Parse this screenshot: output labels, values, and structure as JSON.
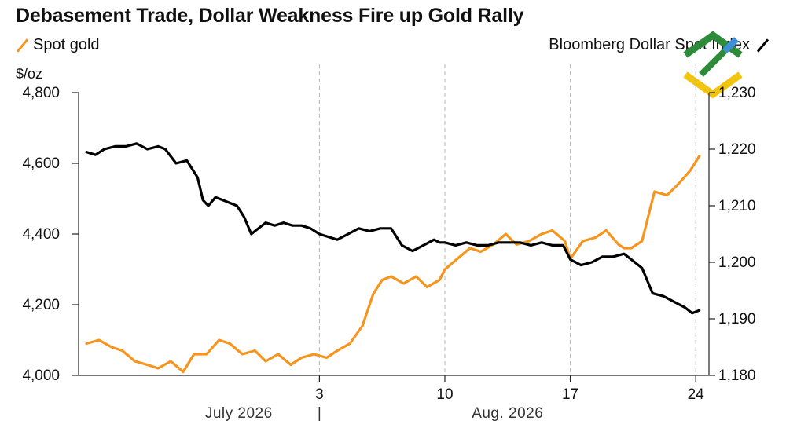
{
  "title": "Debasement Trade, Dollar Weakness Fire up Gold Rally",
  "legend": {
    "left": {
      "label": "Spot gold",
      "color": "#f7941d"
    },
    "right": {
      "label": "Bloomberg Dollar Spot Index",
      "color": "#000000"
    }
  },
  "units": {
    "left": "$/oz"
  },
  "logo": {
    "name": "brand-logo-icon",
    "colors": [
      "#2e8b3a",
      "#3d8fd9",
      "#f1c40f"
    ]
  },
  "chart_data": {
    "type": "line",
    "title": "Debasement Trade, Dollar Weakness Fire up Gold Rally",
    "x_ticks": [
      "3",
      "10",
      "17",
      "24"
    ],
    "x_tick_days": [
      13,
      20,
      27,
      34
    ],
    "x_month_labels": [
      {
        "label": "July 2026",
        "day": 8.5
      },
      {
        "label": "Aug. 2026",
        "day": 23.5
      }
    ],
    "month_separator_day": 13,
    "x_range_days": [
      0,
      34.3
    ],
    "left_axis": {
      "label": "$/oz",
      "range": [
        4000,
        4800
      ],
      "ticks": [
        "4,000",
        "4,200",
        "4,400",
        "4,600",
        "4,800"
      ],
      "tick_values": [
        4000,
        4200,
        4400,
        4600,
        4800
      ]
    },
    "right_axis": {
      "range": [
        1180,
        1230
      ],
      "ticks": [
        "1,180",
        "1,190",
        "1,200",
        "1,210",
        "1,220",
        "1,230"
      ],
      "tick_values": [
        1180,
        1190,
        1200,
        1210,
        1220,
        1230
      ]
    },
    "vertical_grid_days": [
      13,
      20,
      27,
      34
    ],
    "series": [
      {
        "name": "Spot gold",
        "axis": "left",
        "color": "#f7941d",
        "x_days": [
          0,
          0.7,
          1.4,
          2,
          2.7,
          3.4,
          4,
          4.7,
          5.4,
          6,
          6.7,
          7.4,
          8,
          8.7,
          9.4,
          10,
          10.7,
          11.4,
          12,
          12.7,
          13.4,
          14,
          14.7,
          15.4,
          16,
          16.5,
          17,
          17.7,
          18.4,
          19,
          19.7,
          20,
          20.7,
          21.4,
          22,
          22.7,
          23.4,
          24,
          24.7,
          25.4,
          26,
          26.7,
          27,
          27.7,
          28.4,
          29,
          29.7,
          30,
          30.4,
          31,
          31.7,
          32.4,
          33,
          33.7,
          34.2
        ],
        "values": [
          4090,
          4100,
          4080,
          4070,
          4040,
          4030,
          4020,
          4040,
          4010,
          4060,
          4060,
          4100,
          4090,
          4060,
          4070,
          4040,
          4060,
          4030,
          4050,
          4060,
          4050,
          4070,
          4090,
          4140,
          4230,
          4270,
          4280,
          4260,
          4280,
          4250,
          4270,
          4300,
          4330,
          4360,
          4350,
          4370,
          4400,
          4370,
          4380,
          4400,
          4410,
          4380,
          4330,
          4380,
          4390,
          4410,
          4370,
          4360,
          4360,
          4380,
          4520,
          4510,
          4540,
          4580,
          4620
        ]
      },
      {
        "name": "Bloomberg Dollar Spot Index",
        "axis": "right",
        "color": "#000000",
        "x_days": [
          0,
          0.5,
          1,
          1.6,
          2.2,
          2.8,
          3.4,
          4,
          4.4,
          5,
          5.6,
          6.2,
          6.5,
          6.8,
          7.2,
          7.6,
          8,
          8.4,
          8.8,
          9.2,
          9.6,
          10,
          10.5,
          11,
          11.5,
          12,
          12.5,
          13,
          13.5,
          14,
          14.6,
          15.2,
          15.8,
          16.4,
          17,
          17.6,
          18.2,
          18.8,
          19.4,
          19.7,
          20,
          20.6,
          21.2,
          21.8,
          22.4,
          23,
          23.6,
          24.2,
          24.8,
          25.4,
          26,
          26.6,
          27,
          27.6,
          28.2,
          28.8,
          29.4,
          30,
          30.4,
          31,
          31.6,
          32.2,
          32.8,
          33.4,
          33.8,
          34.2
        ],
        "values": [
          1219.5,
          1219,
          1220,
          1220.5,
          1220.5,
          1221,
          1220,
          1220.5,
          1220,
          1217.5,
          1218,
          1215,
          1211,
          1210,
          1211.5,
          1211,
          1210.5,
          1210,
          1208,
          1205,
          1206,
          1207,
          1206.5,
          1207,
          1206.5,
          1206.5,
          1206,
          1205,
          1204.5,
          1204,
          1205,
          1206,
          1205.5,
          1206,
          1206,
          1203,
          1202,
          1203,
          1204,
          1203.5,
          1203.5,
          1203,
          1203.5,
          1203,
          1203,
          1203.5,
          1203.5,
          1203.5,
          1203,
          1203.5,
          1203,
          1203,
          1200.5,
          1199.5,
          1200,
          1201,
          1201,
          1201.5,
          1200.5,
          1199,
          1194.5,
          1194,
          1193,
          1192,
          1191,
          1191.5
        ]
      }
    ]
  }
}
